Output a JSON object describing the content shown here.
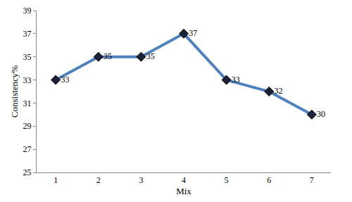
{
  "chart_data": {
    "type": "line",
    "categories": [
      "1",
      "2",
      "3",
      "4",
      "5",
      "6",
      "7"
    ],
    "values": [
      33,
      35,
      35,
      37,
      33,
      32,
      30
    ],
    "x_label": "Mix",
    "y_label": "Consistency%",
    "ylim": [
      25,
      39
    ],
    "yticks": [
      25,
      27,
      29,
      31,
      33,
      35,
      37,
      39
    ],
    "grid": false,
    "data_labels": true,
    "color": "#4f81bd",
    "marker": "diamond"
  }
}
